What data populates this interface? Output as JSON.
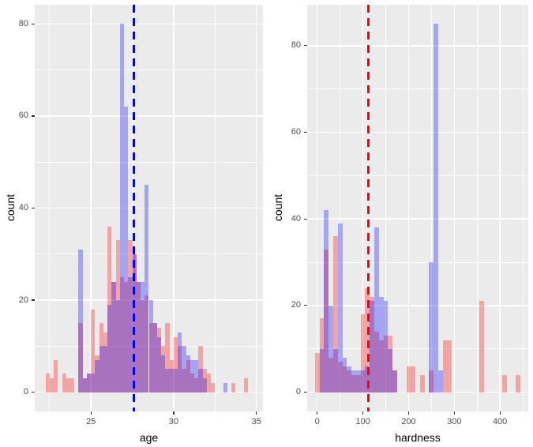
{
  "figure": {
    "y_axis_title": "count",
    "left_x_axis_title": "age",
    "right_x_axis_title": "hardness"
  },
  "colors": {
    "panel_background": "#EBEBEB",
    "gridline": "#FFFFFF",
    "tick_text": "#4D4D4D",
    "blue_fill": "rgba(0,0,255,0.30)",
    "red_fill": "rgba(255,0,0,0.30)",
    "blue_vline": "#0000EE",
    "red_vline": "#FF0000"
  },
  "chart_data": [
    {
      "type": "bar",
      "subtype": "overlaid-histograms",
      "xlabel": "age",
      "ylabel": "count",
      "xlim": [
        21.6,
        35.4
      ],
      "ylim": [
        -4.2,
        84.2
      ],
      "x_major_ticks": [
        25,
        30,
        35
      ],
      "x_minor_ticks": [
        22.5,
        27.5,
        32.5
      ],
      "y_major_ticks": [
        0,
        20,
        40,
        60,
        80
      ],
      "y_minor_ticks": [
        10,
        30,
        50,
        70
      ],
      "binwidth": 0.25,
      "panel_background": "#EBEBEB",
      "vline": {
        "x": 27.6,
        "color": "#0000EE",
        "color_name": "blue",
        "style": "dashed"
      },
      "series": [
        {
          "name": "red",
          "color": "rgba(255,0,0,0.30)",
          "bars": [
            [
              22.375,
              4
            ],
            [
              22.625,
              3
            ],
            [
              22.875,
              7
            ],
            [
              23.375,
              4
            ],
            [
              23.625,
              3
            ],
            [
              23.875,
              3
            ],
            [
              24.375,
              15
            ],
            [
              24.625,
              3
            ],
            [
              24.875,
              4
            ],
            [
              25.125,
              18
            ],
            [
              25.375,
              8
            ],
            [
              25.625,
              15
            ],
            [
              25.875,
              13
            ],
            [
              26.125,
              36
            ],
            [
              26.375,
              24
            ],
            [
              26.625,
              33
            ],
            [
              26.875,
              25
            ],
            [
              27.125,
              24
            ],
            [
              27.375,
              33
            ],
            [
              27.625,
              30
            ],
            [
              27.875,
              24
            ],
            [
              28.125,
              20
            ],
            [
              28.375,
              21
            ],
            [
              28.625,
              15
            ],
            [
              28.875,
              15
            ],
            [
              29.125,
              14
            ],
            [
              29.375,
              10
            ],
            [
              29.625,
              15
            ],
            [
              29.875,
              7
            ],
            [
              30.125,
              12
            ],
            [
              30.375,
              10
            ],
            [
              30.625,
              5
            ],
            [
              30.875,
              7
            ],
            [
              31.125,
              4
            ],
            [
              31.375,
              3
            ],
            [
              31.625,
              10
            ],
            [
              31.875,
              5
            ],
            [
              32.125,
              4
            ],
            [
              32.375,
              2
            ],
            [
              33.625,
              2
            ],
            [
              34.375,
              3
            ]
          ]
        },
        {
          "name": "blue",
          "color": "rgba(0,0,255,0.30)",
          "bars": [
            [
              24.375,
              31
            ],
            [
              24.625,
              3
            ],
            [
              24.875,
              4
            ],
            [
              25.125,
              4
            ],
            [
              25.375,
              7
            ],
            [
              25.625,
              10
            ],
            [
              25.875,
              10
            ],
            [
              26.125,
              19
            ],
            [
              26.375,
              24
            ],
            [
              26.625,
              20
            ],
            [
              26.875,
              80
            ],
            [
              27.125,
              62
            ],
            [
              27.375,
              25
            ],
            [
              27.625,
              30
            ],
            [
              27.875,
              24
            ],
            [
              28.125,
              24
            ],
            [
              28.375,
              45
            ],
            [
              28.625,
              20
            ],
            [
              28.875,
              15
            ],
            [
              29.125,
              12
            ],
            [
              29.375,
              8
            ],
            [
              29.625,
              5
            ],
            [
              29.875,
              5
            ],
            [
              30.125,
              5
            ],
            [
              30.375,
              13
            ],
            [
              30.625,
              10
            ],
            [
              30.875,
              8
            ],
            [
              31.125,
              7
            ],
            [
              31.375,
              7
            ],
            [
              31.625,
              5
            ],
            [
              31.875,
              3
            ],
            [
              33.125,
              2
            ]
          ]
        }
      ]
    },
    {
      "type": "bar",
      "subtype": "overlaid-histograms",
      "xlabel": "hardness",
      "ylabel": "count",
      "xlim": [
        -22,
        462
      ],
      "ylim": [
        -4.45,
        89.45
      ],
      "x_major_ticks": [
        0,
        100,
        200,
        300,
        400
      ],
      "x_minor_ticks": [
        50,
        150,
        250,
        350,
        450
      ],
      "y_major_ticks": [
        0,
        20,
        40,
        60,
        80
      ],
      "y_minor_ticks": [
        10,
        30,
        50,
        70
      ],
      "binwidth": 10,
      "panel_background": "#EBEBEB",
      "vline": {
        "x": 112,
        "color": "#FF0000",
        "color_name": "red",
        "style": "dashed"
      },
      "series": [
        {
          "name": "red",
          "color": "rgba(255,0,0,0.30)",
          "bars": [
            [
              0,
              9
            ],
            [
              10,
              17
            ],
            [
              20,
              33
            ],
            [
              30,
              8
            ],
            [
              40,
              36
            ],
            [
              50,
              7
            ],
            [
              60,
              6
            ],
            [
              70,
              5
            ],
            [
              80,
              4
            ],
            [
              90,
              4
            ],
            [
              100,
              18
            ],
            [
              110,
              24
            ],
            [
              120,
              22
            ],
            [
              130,
              14
            ],
            [
              140,
              12
            ],
            [
              150,
              13
            ],
            [
              160,
              13
            ],
            [
              170,
              5
            ],
            [
              200,
              6
            ],
            [
              210,
              6
            ],
            [
              230,
              4
            ],
            [
              250,
              5
            ],
            [
              280,
              12
            ],
            [
              290,
              12
            ],
            [
              360,
              21
            ],
            [
              410,
              4
            ],
            [
              440,
              4
            ]
          ]
        },
        {
          "name": "blue",
          "color": "rgba(0,0,255,0.30)",
          "bars": [
            [
              10,
              10
            ],
            [
              20,
              42
            ],
            [
              30,
              20
            ],
            [
              40,
              10
            ],
            [
              50,
              39
            ],
            [
              60,
              8
            ],
            [
              70,
              6
            ],
            [
              80,
              5
            ],
            [
              90,
              5
            ],
            [
              100,
              5
            ],
            [
              110,
              6
            ],
            [
              120,
              21
            ],
            [
              130,
              38
            ],
            [
              140,
              22
            ],
            [
              150,
              21
            ],
            [
              160,
              10
            ],
            [
              170,
              5
            ],
            [
              250,
              30
            ],
            [
              260,
              85
            ],
            [
              270,
              5
            ]
          ]
        }
      ]
    }
  ]
}
